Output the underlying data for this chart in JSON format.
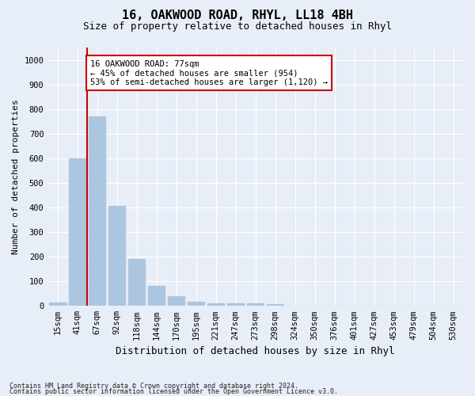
{
  "title1": "16, OAKWOOD ROAD, RHYL, LL18 4BH",
  "title2": "Size of property relative to detached houses in Rhyl",
  "xlabel": "Distribution of detached houses by size in Rhyl",
  "ylabel": "Number of detached properties",
  "categories": [
    "15sqm",
    "41sqm",
    "67sqm",
    "92sqm",
    "118sqm",
    "144sqm",
    "170sqm",
    "195sqm",
    "221sqm",
    "247sqm",
    "273sqm",
    "298sqm",
    "324sqm",
    "350sqm",
    "376sqm",
    "401sqm",
    "427sqm",
    "453sqm",
    "479sqm",
    "504sqm",
    "530sqm"
  ],
  "values": [
    15,
    600,
    770,
    405,
    190,
    80,
    38,
    18,
    12,
    12,
    10,
    6,
    0,
    0,
    0,
    0,
    0,
    0,
    0,
    0,
    0
  ],
  "bar_color": "#adc6e0",
  "vline_color": "#cc0000",
  "vline_x_index": 2,
  "annotation_text": "16 OAKWOOD ROAD: 77sqm\n← 45% of detached houses are smaller (954)\n53% of semi-detached houses are larger (1,120) →",
  "annotation_box_color": "#cc0000",
  "annotation_bg": "#ffffff",
  "ylim": [
    0,
    1050
  ],
  "yticks": [
    0,
    100,
    200,
    300,
    400,
    500,
    600,
    700,
    800,
    900,
    1000
  ],
  "footer1": "Contains HM Land Registry data © Crown copyright and database right 2024.",
  "footer2": "Contains public sector information licensed under the Open Government Licence v3.0.",
  "background_color": "#e8eef8",
  "plot_bg": "#e8eef8",
  "grid_color": "#ffffff",
  "title1_fontsize": 11,
  "title2_fontsize": 9,
  "ylabel_fontsize": 8,
  "xlabel_fontsize": 9,
  "tick_fontsize": 7.5,
  "footer_fontsize": 6.0
}
